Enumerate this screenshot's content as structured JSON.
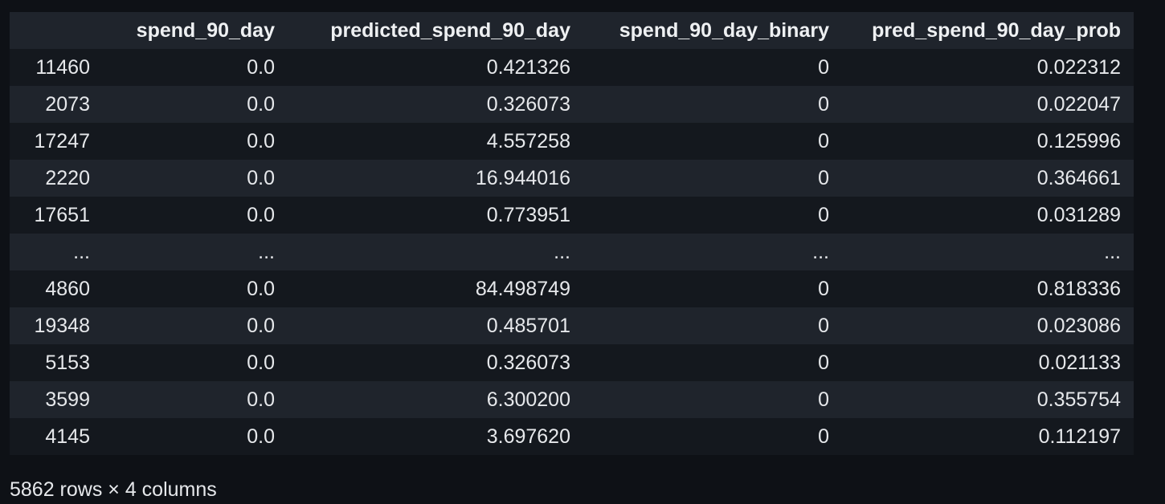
{
  "table": {
    "columns": [
      "",
      "spend_90_day",
      "predicted_spend_90_day",
      "spend_90_day_binary",
      "pred_spend_90_day_prob"
    ],
    "rows": [
      [
        "11460",
        "0.0",
        "0.421326",
        "0",
        "0.022312"
      ],
      [
        "2073",
        "0.0",
        "0.326073",
        "0",
        "0.022047"
      ],
      [
        "17247",
        "0.0",
        "4.557258",
        "0",
        "0.125996"
      ],
      [
        "2220",
        "0.0",
        "16.944016",
        "0",
        "0.364661"
      ],
      [
        "17651",
        "0.0",
        "0.773951",
        "0",
        "0.031289"
      ],
      [
        "...",
        "...",
        "...",
        "...",
        "..."
      ],
      [
        "4860",
        "0.0",
        "84.498749",
        "0",
        "0.818336"
      ],
      [
        "19348",
        "0.0",
        "0.485701",
        "0",
        "0.023086"
      ],
      [
        "5153",
        "0.0",
        "0.326073",
        "0",
        "0.021133"
      ],
      [
        "3599",
        "0.0",
        "6.300200",
        "0",
        "0.355754"
      ],
      [
        "4145",
        "0.0",
        "3.697620",
        "0",
        "0.112197"
      ]
    ]
  },
  "footer": "5862 rows × 4 columns"
}
